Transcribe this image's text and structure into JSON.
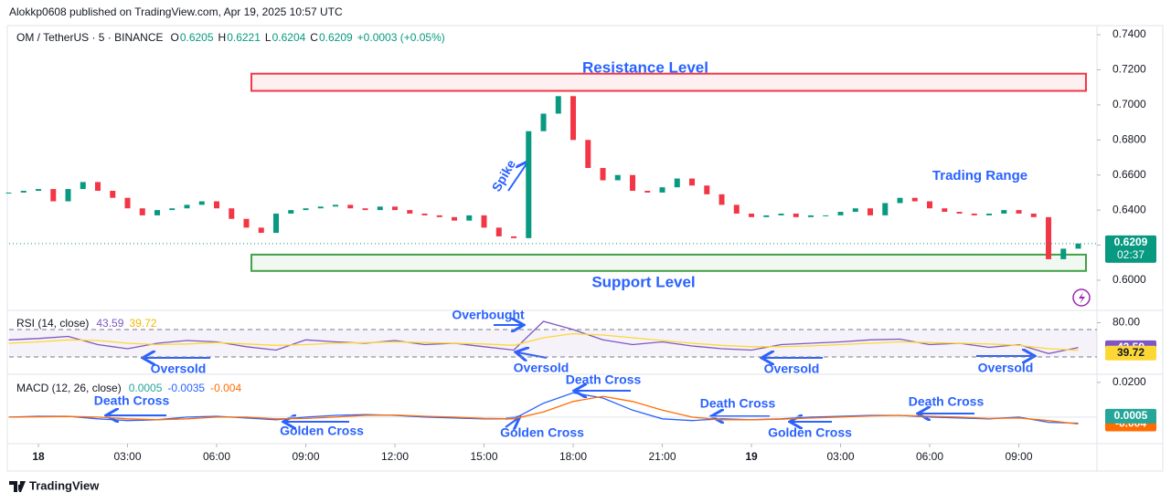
{
  "header": "Alokkp0608 published on TradingView.com, Apr 19, 2025 10:57 UTC",
  "footer": "TradingView",
  "chart_data": [
    {
      "type": "candlestick",
      "x": [
        -1,
        -0.5,
        0,
        0.5,
        1,
        1.5,
        2,
        2.5,
        3,
        3.5,
        4,
        4.5,
        5,
        5.5,
        6,
        6.5,
        7,
        7.5,
        8,
        8.5,
        9,
        9.5,
        10,
        10.5,
        11,
        11.5,
        12,
        12.5,
        13,
        13.5,
        14,
        14.5,
        15,
        15.5,
        16,
        16.5,
        17,
        17.5,
        18,
        18.5,
        19,
        19.5,
        20,
        20.5,
        21,
        21.5,
        22,
        22.5,
        23,
        23.5,
        24,
        24.5,
        25,
        25.5,
        26,
        26.5,
        27,
        27.5,
        28,
        28.5,
        29,
        29.5,
        30,
        30.5,
        31,
        31.5,
        32,
        32.5,
        33,
        33.5,
        34,
        34.5,
        35
      ],
      "series": [
        {
          "name": "OM / TetherUS · 5 · BINANCE",
          "up_color": "#089981",
          "down_color": "#f23645",
          "values": [
            0.65,
            0.651,
            0.652,
            0.645,
            0.652,
            0.656,
            0.651,
            0.647,
            0.641,
            0.637,
            0.64,
            0.641,
            0.643,
            0.645,
            0.641,
            0.635,
            0.63,
            0.627,
            0.638,
            0.64,
            0.641,
            0.642,
            0.643,
            0.641,
            0.64,
            0.642,
            0.64,
            0.638,
            0.637,
            0.636,
            0.634,
            0.637,
            0.63,
            0.625,
            0.624,
            0.685,
            0.695,
            0.705,
            0.68,
            0.664,
            0.657,
            0.66,
            0.651,
            0.65,
            0.653,
            0.658,
            0.654,
            0.649,
            0.643,
            0.638,
            0.636,
            0.637,
            0.638,
            0.636,
            0.637,
            0.637,
            0.639,
            0.641,
            0.637,
            0.644,
            0.647,
            0.645,
            0.641,
            0.639,
            0.638,
            0.637,
            0.638,
            0.64,
            0.638,
            0.636,
            0.612,
            0.618,
            0.6209
          ]
        }
      ],
      "ohlc": [
        {
          "label": "O",
          "value": 0.6205
        },
        {
          "label": "H",
          "value": 0.6221
        },
        {
          "label": "L",
          "value": 0.6204
        },
        {
          "label": "C",
          "value": 0.6209
        }
      ],
      "change": "+0.0003 (+0.05%)",
      "countdown": "02:37",
      "xlim": [
        -0.985,
        35.63
      ],
      "xticks": [
        {
          "value": 0,
          "label": "18"
        },
        {
          "value": 3,
          "label": "03:00"
        },
        {
          "value": 6,
          "label": "06:00"
        },
        {
          "value": 9,
          "label": "09:00"
        },
        {
          "value": 12,
          "label": "12:00"
        },
        {
          "value": 15,
          "label": "15:00"
        },
        {
          "value": 18,
          "label": "18:00"
        },
        {
          "value": 21,
          "label": "21:00"
        },
        {
          "value": 24,
          "label": "19"
        },
        {
          "value": 27,
          "label": "03:00"
        },
        {
          "value": 30,
          "label": "06:00"
        },
        {
          "value": 33,
          "label": "09:00"
        }
      ],
      "ylim": [
        0.5828,
        0.7442
      ],
      "yticks": [
        {
          "value": 0.74,
          "label": "0.7400"
        },
        {
          "value": 0.72,
          "label": "0.7200"
        },
        {
          "value": 0.7,
          "label": "0.7000"
        },
        {
          "value": 0.68,
          "label": "0.6800"
        },
        {
          "value": 0.66,
          "label": "0.6600"
        },
        {
          "value": 0.64,
          "label": "0.6400"
        },
        {
          "value": 0.62,
          "label": "0.6200"
        },
        {
          "value": 0.6,
          "label": "0.6000"
        }
      ],
      "zones": [
        {
          "label": "Resistance Level",
          "ylim": [
            0.708,
            0.7178
          ],
          "xlim": [
            7.17,
            35.26
          ],
          "color": "#f23645"
        },
        {
          "label": "Support Level",
          "ylim": [
            0.6053,
            0.6146
          ],
          "xlim": [
            7.17,
            35.26
          ],
          "color": "#43a047"
        }
      ],
      "annotations": [
        "Spike",
        "Trading Range",
        "Overbought",
        "Oversold",
        "Oversold",
        "Oversold",
        "Oversold",
        "Death Cross",
        "Death Cross",
        "Death Cross",
        "Death Cross",
        "Golden Cross",
        "Golden Cross",
        "Golden Cross"
      ]
    },
    {
      "type": "line",
      "title": "RSI (14, close)",
      "x": [
        -1,
        0,
        1,
        2,
        3,
        4,
        5,
        6,
        7,
        8,
        9,
        10,
        11,
        12,
        13,
        14,
        15,
        16,
        17,
        18,
        19,
        20,
        21,
        22,
        23,
        24,
        25,
        26,
        27,
        28,
        29,
        30,
        31,
        32,
        33,
        34,
        35
      ],
      "series": [
        {
          "color": "#7e57c2",
          "values": [
            55,
            57,
            60,
            48,
            42,
            50,
            54,
            52,
            45,
            40,
            55,
            52,
            50,
            54,
            48,
            50,
            45,
            40,
            82,
            70,
            55,
            48,
            52,
            46,
            42,
            40,
            48,
            50,
            52,
            55,
            56,
            48,
            50,
            44,
            48,
            35,
            43.59
          ]
        },
        {
          "color": "#fdd835",
          "values": [
            50,
            52,
            55,
            54,
            50,
            48,
            49,
            51,
            49,
            47,
            48,
            50,
            51,
            52,
            51,
            50,
            49,
            47,
            58,
            64,
            62,
            58,
            54,
            50,
            47,
            45,
            45,
            46,
            48,
            50,
            52,
            51,
            50,
            49,
            47,
            42,
            39.72
          ]
        }
      ],
      "bands": [
        70,
        30
      ],
      "ylim": [
        4.7,
        94
      ],
      "yticks": [
        {
          "value": 80,
          "label": "80.00"
        }
      ]
    },
    {
      "type": "line",
      "title": "MACD (12, 26, close)",
      "x": [
        -1,
        0,
        1,
        2,
        3,
        4,
        5,
        6,
        7,
        8,
        9,
        10,
        11,
        12,
        13,
        14,
        15,
        16,
        17,
        18,
        19,
        20,
        21,
        22,
        23,
        24,
        25,
        26,
        27,
        28,
        29,
        30,
        31,
        32,
        33,
        34,
        35
      ],
      "histogram": {
        "color": "#26a69a",
        "value": 0.0005
      },
      "series": [
        {
          "color": "#2962ff",
          "values": [
            0,
            0.0005,
            0.0005,
            -0.001,
            -0.002,
            -0.0015,
            0,
            0.0005,
            -0.0005,
            -0.0015,
            0,
            0.001,
            0.0015,
            0.001,
            0,
            -0.0005,
            -0.001,
            -0.001,
            0.008,
            0.014,
            0.011,
            0.004,
            -0.001,
            -0.002,
            -0.001,
            -0.0015,
            -0.001,
            0,
            0.0005,
            0.001,
            0.001,
            0,
            -0.0005,
            -0.001,
            0,
            -0.003,
            -0.0035
          ]
        },
        {
          "color": "#ff6d00",
          "values": [
            0,
            0.0002,
            0.0004,
            0,
            -0.001,
            -0.0015,
            -0.001,
            0,
            0,
            -0.001,
            -0.0008,
            0,
            0.001,
            0.0012,
            0.0005,
            0,
            -0.0007,
            -0.001,
            0.003,
            0.009,
            0.012,
            0.009,
            0.004,
            0,
            -0.0015,
            -0.0015,
            -0.0012,
            -0.0005,
            0,
            0.0007,
            0.001,
            0.0005,
            0,
            -0.0008,
            -0.0005,
            -0.002,
            -0.004
          ]
        }
      ],
      "ylim": [
        -0.0153,
        0.0247
      ],
      "yticks": [
        {
          "value": 0.02,
          "label": "0.0200"
        }
      ]
    }
  ]
}
